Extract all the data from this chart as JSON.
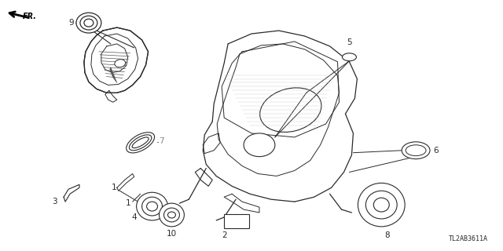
{
  "bg_color": "#ffffff",
  "line_color": "#2a2a2a",
  "fig_width": 6.4,
  "fig_height": 3.2,
  "dpi": 100,
  "watermark": "TL2AB3611A",
  "title_label_fontsize": 7.0
}
